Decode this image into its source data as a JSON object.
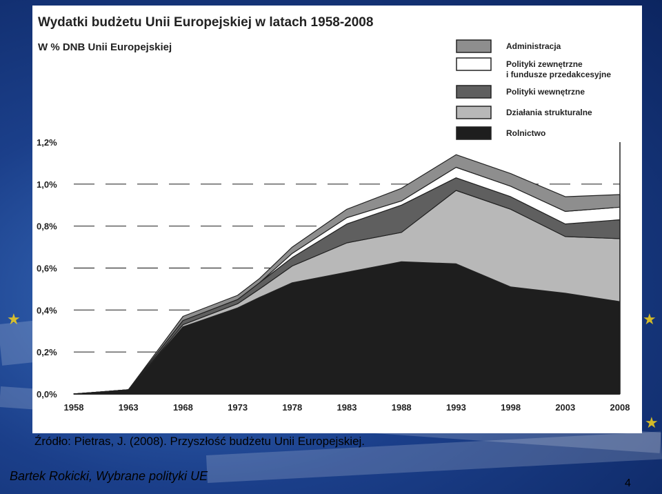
{
  "slide": {
    "source": "Źródło: Pietras, J. (2008). Przyszłość budżetu Unii Europejskiej.",
    "author": "Bartek Rokicki, Wybrane polityki UE",
    "page_number": "4"
  },
  "colors": {
    "Rolnictwo": "#1e1e1e",
    "Działania strukturalne": "#b8b8b8",
    "Polityki wewnętrzne": "#5f5f5f",
    "Polityki zewnętrzne i fundusze przedakcesyjne": "#ffffff",
    "Administracja": "#8e8e8e",
    "stroke": "#222222",
    "background": "#ffffff"
  },
  "chart_data": {
    "type": "area",
    "stacked": true,
    "title": "Wydatki budżetu Unii Europejskiej  w latach 1958-2008",
    "subtitle": "W % DNB Unii Europejskiej",
    "x": [
      1958,
      1963,
      1968,
      1973,
      1975,
      1978,
      1983,
      1988,
      1993,
      1998,
      2003,
      2008
    ],
    "x_ticks": [
      "1958",
      "1963",
      "1968",
      "1973",
      "1978",
      "1983",
      "1988",
      "1993",
      "1998",
      "2003",
      "2008"
    ],
    "y_ticks": [
      "0,0%",
      "0,2%",
      "0,4%",
      "0,6%",
      "0,8%",
      "1,0%",
      "1,2%"
    ],
    "ylim": [
      0,
      1.2
    ],
    "dashed_gridlines": [
      0.2,
      0.4,
      0.6,
      0.8,
      1.0
    ],
    "legend_position": "top-right",
    "series": [
      {
        "name": "Rolnictwo",
        "values": [
          0.0,
          0.02,
          0.32,
          0.41,
          0.46,
          0.53,
          0.58,
          0.63,
          0.62,
          0.51,
          0.48,
          0.44
        ]
      },
      {
        "name": "Działania strukturalne",
        "values": [
          0.0,
          0.0,
          0.01,
          0.02,
          0.04,
          0.08,
          0.14,
          0.14,
          0.35,
          0.37,
          0.27,
          0.3
        ]
      },
      {
        "name": "Polityki wewnętrzne",
        "values": [
          0.0,
          0.0,
          0.02,
          0.02,
          0.03,
          0.04,
          0.09,
          0.13,
          0.06,
          0.06,
          0.06,
          0.09
        ]
      },
      {
        "name": "Polityki zewnętrzne\ni fundusze przedakcesyjne",
        "values": [
          0.0,
          0.0,
          0.0,
          0.0,
          0.0,
          0.02,
          0.03,
          0.02,
          0.05,
          0.05,
          0.06,
          0.06
        ]
      },
      {
        "name": "Administracja",
        "values": [
          0.0,
          0.0,
          0.02,
          0.02,
          0.02,
          0.03,
          0.04,
          0.06,
          0.06,
          0.06,
          0.07,
          0.06
        ]
      }
    ],
    "legend": [
      "Administracja",
      "Polityki zewnętrzne\ni fundusze przedakcesyjne",
      "Polityki wewnętrzne",
      "Działania strukturalne",
      "Rolnictwo"
    ]
  }
}
